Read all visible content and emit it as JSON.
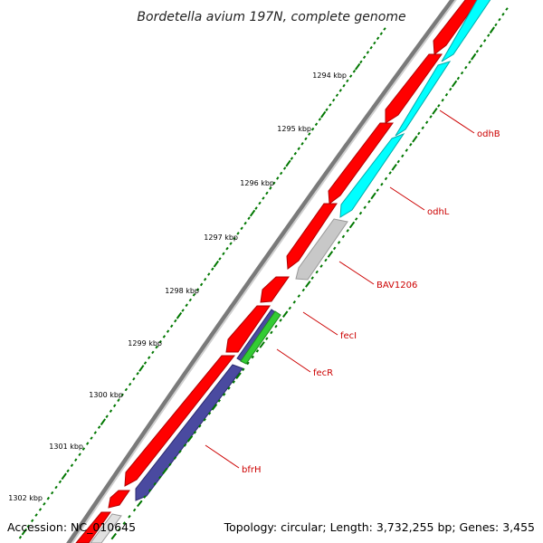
{
  "title": "Bordetella avium 197N, complete genome",
  "accession": "Accession: NC_010645",
  "topology": "Topology: circular; Length: 3,732,255 bp; Genes: 3,455",
  "kbp_labels": [
    "1294 kbp",
    "1295 kbp",
    "1296 kbp",
    "1297 kbp",
    "1298 kbp",
    "1299 kbp",
    "1300 kbp",
    "1301 kbp",
    "1302 kbp"
  ],
  "gene_labels": [
    "odhB",
    "odhL",
    "BAV1206",
    "fecI",
    "fecR",
    "bfrH"
  ],
  "colors": {
    "backbone": "#888888",
    "cds": "#ff0000",
    "odh_genes": "#00ffff",
    "bav1206": "#c8c8c8",
    "feci": "#4a4aa0",
    "fecr": "#33cc33",
    "bfrh": "#4a4aa0",
    "label": "#cc0000",
    "tick": "#007700"
  }
}
